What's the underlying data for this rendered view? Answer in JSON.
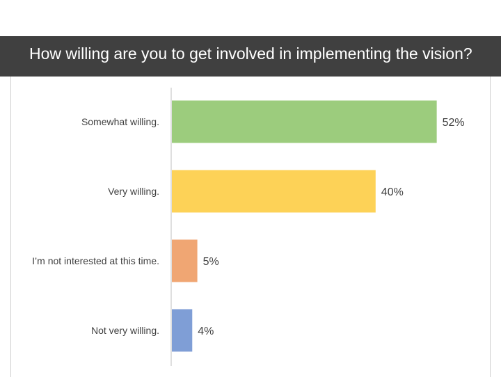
{
  "title": "How willing are you to get involved in implementing the vision?",
  "chart_data": {
    "type": "bar",
    "orientation": "horizontal",
    "categories": [
      "Somewhat willing.",
      "Very willing.",
      "I’m not interested at this time.",
      "Not very willing."
    ],
    "values": [
      52,
      40,
      5,
      4
    ],
    "value_labels": [
      "52%",
      "40%",
      "5%",
      "4%"
    ],
    "colors": [
      "#9ccc7d",
      "#fdd257",
      "#f0a673",
      "#7f9ed6"
    ],
    "xlim": [
      0,
      100
    ],
    "grid": false,
    "legend": "none"
  }
}
